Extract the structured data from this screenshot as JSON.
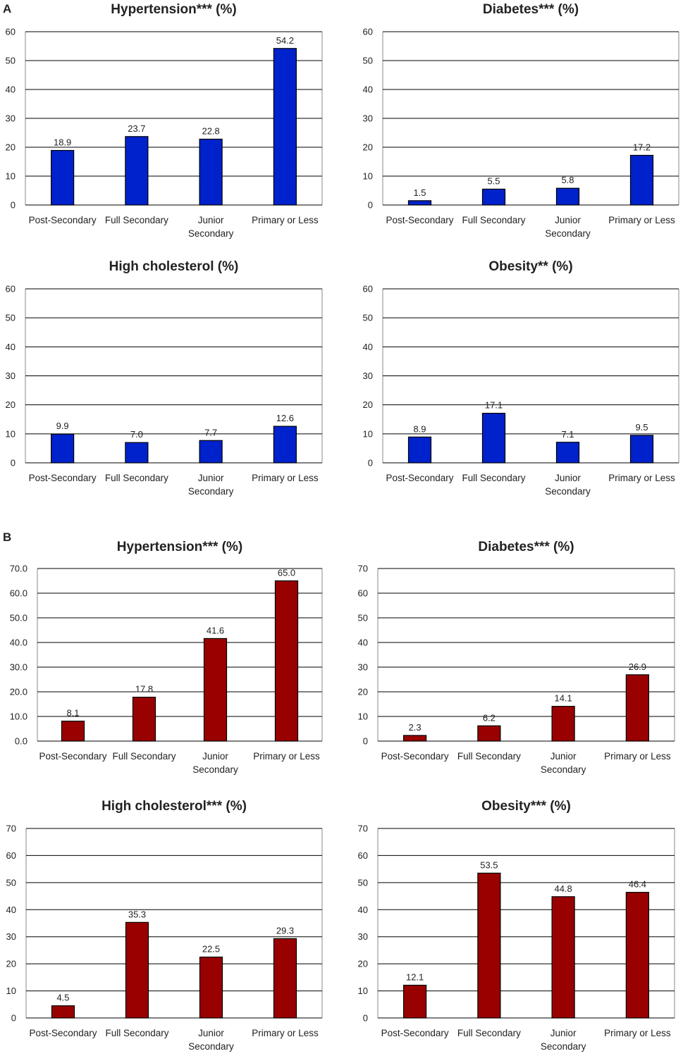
{
  "colors": {
    "panel_a": "#0022cc",
    "panel_b": "#990000",
    "grid": "#000000",
    "border": "#888888"
  },
  "chart_data": [
    {
      "type": "bar",
      "panel": "A",
      "title": "Hypertension*** (%)",
      "categories": [
        "Post-Secondary",
        "Full Secondary",
        "Junior Secondary",
        "Primary or Less"
      ],
      "values": [
        18.9,
        23.7,
        22.8,
        54.2
      ],
      "value_labels": [
        "18.9",
        "23.7",
        "22.8",
        "54.2"
      ],
      "ylim": [
        0,
        60
      ],
      "yticks": [
        0,
        10,
        20,
        30,
        40,
        50,
        60
      ],
      "ytick_labels": [
        "0",
        "10",
        "20",
        "30",
        "40",
        "50",
        "60"
      ],
      "grid": true,
      "xlabel": "",
      "ylabel": ""
    },
    {
      "type": "bar",
      "panel": "A",
      "title": "Diabetes*** (%)",
      "categories": [
        "Post-Secondary",
        "Full Secondary",
        "Junior Secondary",
        "Primary or Less"
      ],
      "values": [
        1.5,
        5.5,
        5.8,
        17.2
      ],
      "value_labels": [
        "1.5",
        "5.5",
        "5.8",
        "17.2"
      ],
      "ylim": [
        0,
        60
      ],
      "yticks": [
        0,
        10,
        20,
        30,
        40,
        50,
        60
      ],
      "ytick_labels": [
        "0",
        "10",
        "20",
        "30",
        "40",
        "50",
        "60"
      ],
      "grid": true,
      "xlabel": "",
      "ylabel": ""
    },
    {
      "type": "bar",
      "panel": "A",
      "title": "High cholesterol (%)",
      "categories": [
        "Post-Secondary",
        "Full Secondary",
        "Junior Secondary",
        "Primary or Less"
      ],
      "values": [
        9.9,
        7.0,
        7.7,
        12.6
      ],
      "value_labels": [
        "9.9",
        "7.0",
        "7.7",
        "12.6"
      ],
      "ylim": [
        0,
        60
      ],
      "yticks": [
        0,
        10,
        20,
        30,
        40,
        50,
        60
      ],
      "ytick_labels": [
        "0",
        "10",
        "20",
        "30",
        "40",
        "50",
        "60"
      ],
      "grid": true,
      "xlabel": "",
      "ylabel": ""
    },
    {
      "type": "bar",
      "panel": "A",
      "title": "Obesity** (%)",
      "categories": [
        "Post-Secondary",
        "Full Secondary",
        "Junior Secondary",
        "Primary or Less"
      ],
      "values": [
        8.9,
        17.1,
        7.1,
        9.5
      ],
      "value_labels": [
        "8.9",
        "17.1",
        "7.1",
        "9.5"
      ],
      "ylim": [
        0,
        60
      ],
      "yticks": [
        0,
        10,
        20,
        30,
        40,
        50,
        60
      ],
      "ytick_labels": [
        "0",
        "10",
        "20",
        "30",
        "40",
        "50",
        "60"
      ],
      "grid": true,
      "xlabel": "",
      "ylabel": ""
    },
    {
      "type": "bar",
      "panel": "B",
      "title": "Hypertension*** (%)",
      "categories": [
        "Post-Secondary",
        "Full Secondary",
        "Junior Secondary",
        "Primary or Less"
      ],
      "values": [
        8.1,
        17.8,
        41.6,
        65.0
      ],
      "value_labels": [
        "8.1",
        "17.8",
        "41.6",
        "65.0"
      ],
      "ylim": [
        0,
        70
      ],
      "yticks": [
        0,
        10,
        20,
        30,
        40,
        50,
        60,
        70
      ],
      "ytick_labels": [
        "0.0",
        "10.0",
        "20.0",
        "30.0",
        "40.0",
        "50.0",
        "60.0",
        "70.0"
      ],
      "grid": true,
      "xlabel": "",
      "ylabel": ""
    },
    {
      "type": "bar",
      "panel": "B",
      "title": "Diabetes*** (%)",
      "categories": [
        "Post-Secondary",
        "Full Secondary",
        "Junior Secondary",
        "Primary or Less"
      ],
      "values": [
        2.3,
        6.2,
        14.1,
        26.9
      ],
      "value_labels": [
        "2.3",
        "6.2",
        "14.1",
        "26.9"
      ],
      "ylim": [
        0,
        70
      ],
      "yticks": [
        0,
        10,
        20,
        30,
        40,
        50,
        60,
        70
      ],
      "ytick_labels": [
        "0",
        "10",
        "20",
        "30",
        "40",
        "50",
        "60",
        "70"
      ],
      "grid": true,
      "xlabel": "",
      "ylabel": ""
    },
    {
      "type": "bar",
      "panel": "B",
      "title": "High cholesterol*** (%)",
      "categories": [
        "Post-Secondary",
        "Full Secondary",
        "Junior Secondary",
        "Primary or Less"
      ],
      "values": [
        4.5,
        35.3,
        22.5,
        29.3
      ],
      "value_labels": [
        "4.5",
        "35.3",
        "22.5",
        "29.3"
      ],
      "ylim": [
        0,
        70
      ],
      "yticks": [
        0,
        10,
        20,
        30,
        40,
        50,
        60,
        70
      ],
      "ytick_labels": [
        "0",
        "10",
        "20",
        "30",
        "40",
        "50",
        "60",
        "70"
      ],
      "grid": true,
      "xlabel": "",
      "ylabel": ""
    },
    {
      "type": "bar",
      "panel": "B",
      "title": "Obesity*** (%)",
      "categories": [
        "Post-Secondary",
        "Full Secondary",
        "Junior Secondary",
        "Primary or Less"
      ],
      "values": [
        12.1,
        53.5,
        44.8,
        46.4
      ],
      "value_labels": [
        "12.1",
        "53.5",
        "44.8",
        "46.4"
      ],
      "ylim": [
        0,
        70
      ],
      "yticks": [
        0,
        10,
        20,
        30,
        40,
        50,
        60,
        70
      ],
      "ytick_labels": [
        "0",
        "10",
        "20",
        "30",
        "40",
        "50",
        "60",
        "70"
      ],
      "grid": true,
      "xlabel": "",
      "ylabel": ""
    }
  ],
  "panel_labels": {
    "a": "A",
    "b": "B"
  }
}
